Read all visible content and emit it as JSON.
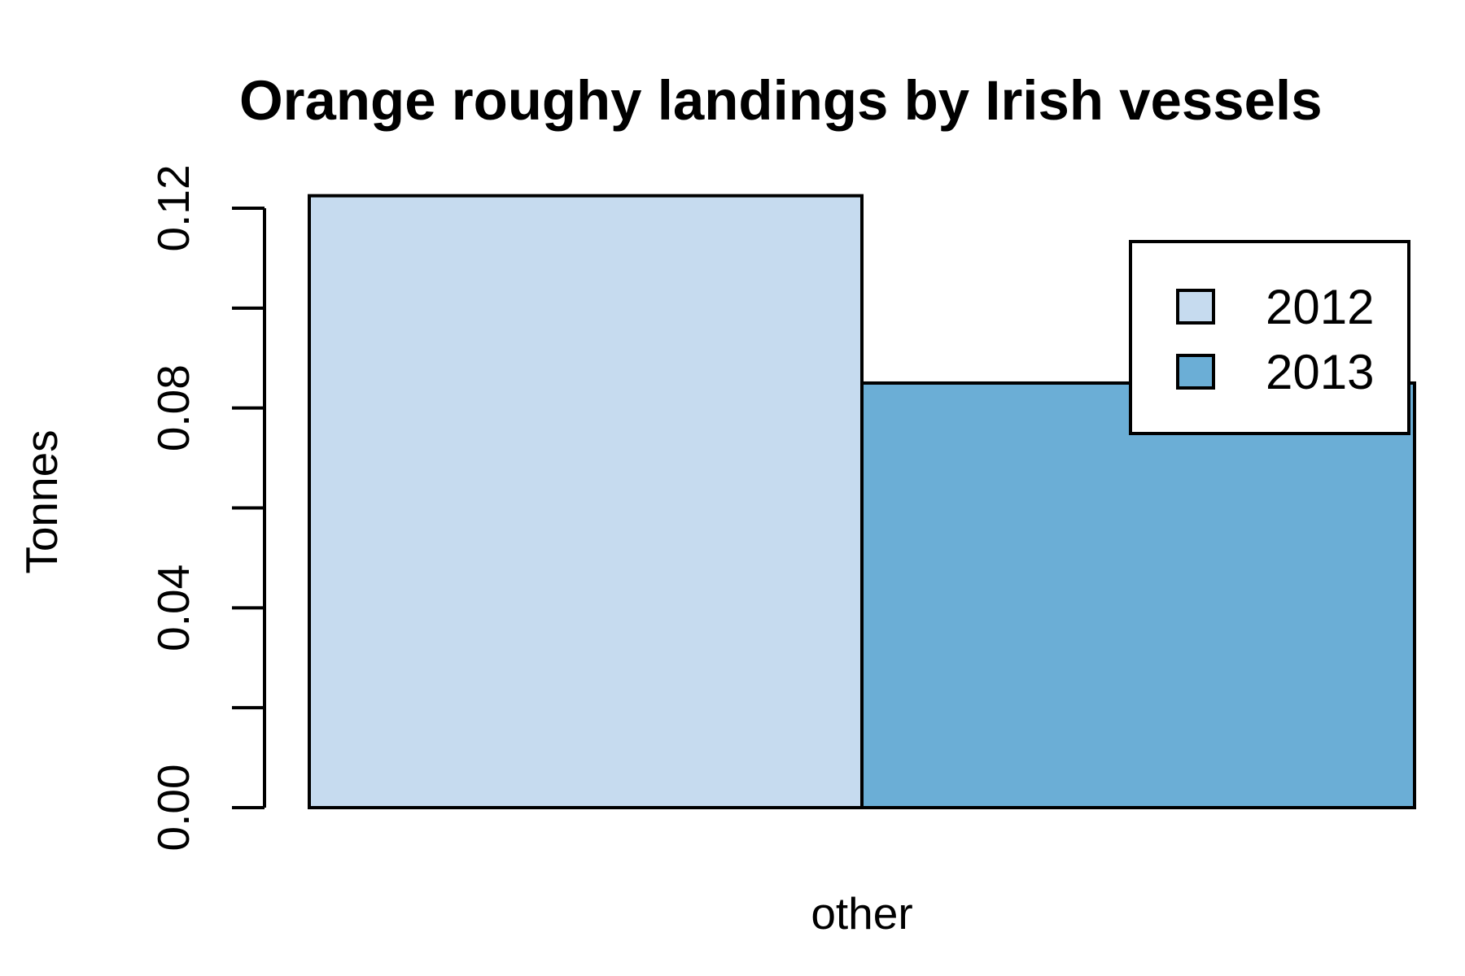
{
  "chart_data": {
    "type": "bar",
    "title": "Orange roughy landings by Irish vessels",
    "xlabel": "",
    "ylabel": "Tonnes",
    "categories": [
      "other"
    ],
    "series": [
      {
        "name": "2012",
        "values": [
          0.1225
        ],
        "color": "#C6DBEF"
      },
      {
        "name": "2013",
        "values": [
          0.085
        ],
        "color": "#6BAED6"
      }
    ],
    "ylim": [
      0,
      0.12
    ],
    "yticks": [
      0,
      0.02,
      0.04,
      0.06,
      0.08,
      0.1,
      0.12
    ],
    "ytick_labels": [
      "0.00",
      "0.04",
      "0.08",
      "0.12"
    ],
    "legend_position": "top-right",
    "grid": false
  }
}
